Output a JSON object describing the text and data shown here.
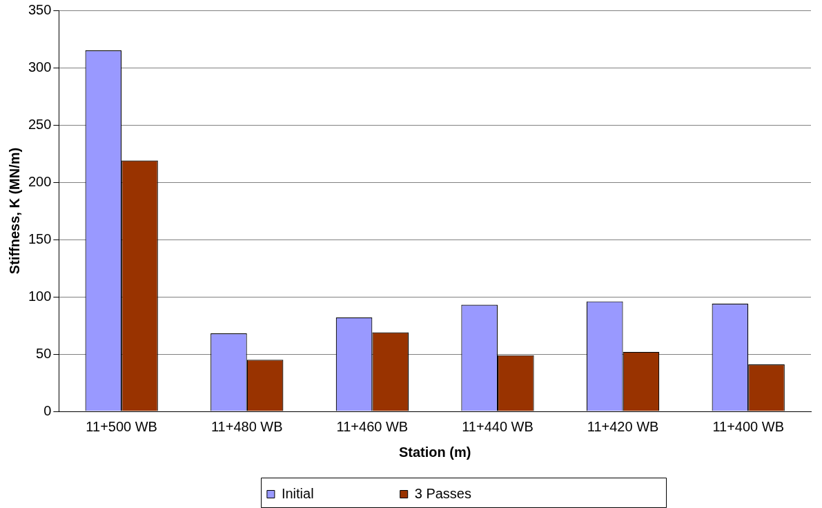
{
  "chart_data": {
    "type": "bar",
    "xlabel": "Station (m)",
    "ylabel": "Stiffness, K (MN/m)",
    "categories": [
      "11+500 WB",
      "11+480 WB",
      "11+460 WB",
      "11+440 WB",
      "11+420 WB",
      "11+400 WB"
    ],
    "series": [
      {
        "name": "Initial",
        "color": "#9999ff",
        "values": [
          315,
          68,
          82,
          93,
          96,
          94
        ]
      },
      {
        "name": "3 Passes",
        "color": "#993300",
        "values": [
          219,
          45,
          69,
          49,
          52,
          41
        ]
      }
    ],
    "ylim": [
      0,
      350
    ],
    "yticks": [
      0,
      50,
      100,
      150,
      200,
      250,
      300,
      350
    ],
    "grid": "y",
    "legend": "bottom"
  }
}
